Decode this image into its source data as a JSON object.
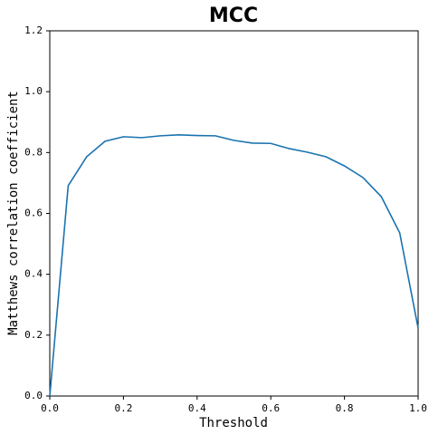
{
  "chart_data": {
    "type": "line",
    "title": "MCC",
    "x_label": "Threshold",
    "y_label": "Matthews correlation coefficient",
    "x": [
      0,
      0.05,
      0.1,
      0.15,
      0.2,
      0.25,
      0.3,
      0.35,
      0.4,
      0.45,
      0.5,
      0.55,
      0.6,
      0.65,
      0.7,
      0.75,
      0.8,
      0.85,
      0.9,
      0.95,
      1.0
    ],
    "series": [
      {
        "name": "MCC",
        "color": "#1a73b0",
        "values": [
          0.0,
          0.691,
          0.786,
          0.837,
          0.852,
          0.849,
          0.855,
          0.858,
          0.856,
          0.855,
          0.84,
          0.831,
          0.83,
          0.813,
          0.801,
          0.786,
          0.756,
          0.718,
          0.655,
          0.536,
          0.223
        ]
      }
    ],
    "xlim": [
      0,
      1
    ],
    "ylim": [
      0,
      1.2
    ],
    "xticks": [
      {
        "value": 0,
        "label": "0.0"
      },
      {
        "value": 0.2,
        "label": "0.2"
      },
      {
        "value": 0.4,
        "label": "0.4"
      },
      {
        "value": 0.6,
        "label": "0.6"
      },
      {
        "value": 0.8,
        "label": "0.8"
      },
      {
        "value": 1.0,
        "label": "1.0"
      }
    ],
    "yticks": [
      {
        "value": 0,
        "label": "0.0"
      },
      {
        "value": 0.2,
        "label": "0.2"
      },
      {
        "value": 0.4,
        "label": "0.4"
      },
      {
        "value": 0.6,
        "label": "0.6"
      },
      {
        "value": 0.8,
        "label": "0.8"
      },
      {
        "value": 1.0,
        "label": "1.0"
      },
      {
        "value": 1.2,
        "label": "1.2"
      }
    ],
    "grid": false
  }
}
